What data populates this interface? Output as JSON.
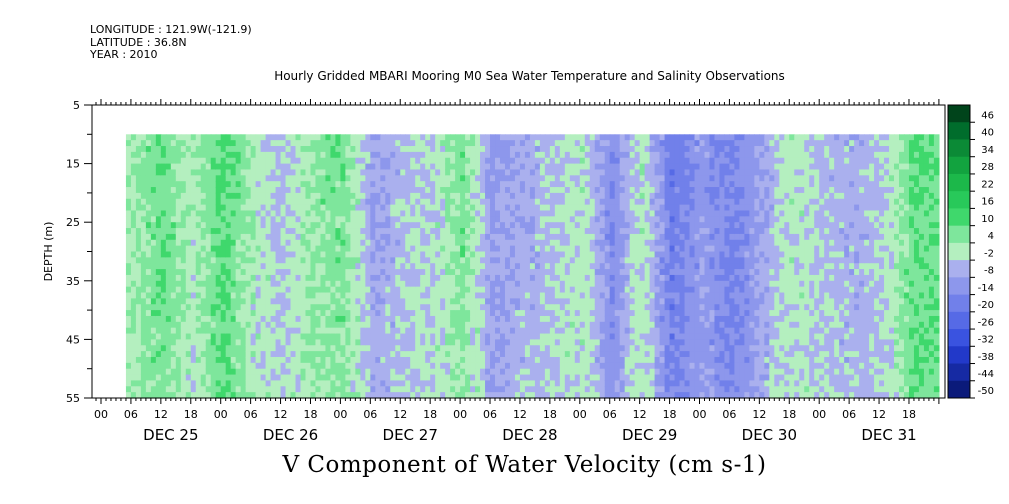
{
  "meta": {
    "longitude": "LONGITUDE : 121.9W(-121.9)",
    "latitude": "LATITUDE : 36.8N",
    "year": "YEAR : 2010"
  },
  "chart_data": {
    "type": "heatmap",
    "title": "Hourly Gridded MBARI Mooring M0 Sea Water Temperature and Salinity Observations",
    "ylabel": "DEPTH (m)",
    "xlabel": "V Component of Water Velocity (cm s-1)",
    "ylim": [
      55,
      5
    ],
    "y_ticks": [
      "5",
      "15",
      "25",
      "35",
      "45",
      "55"
    ],
    "x_hour_ticks": [
      "00",
      "06",
      "12",
      "18",
      "00",
      "06",
      "12",
      "18",
      "00",
      "06",
      "12",
      "18",
      "00",
      "06",
      "12",
      "18",
      "00",
      "06",
      "12",
      "18",
      "00",
      "06",
      "12",
      "18",
      "00",
      "06",
      "12",
      "18"
    ],
    "x_day_labels": [
      "DEC 25",
      "DEC 26",
      "DEC 27",
      "DEC 28",
      "DEC 29",
      "DEC 30",
      "DEC 31"
    ],
    "data_depth_range": [
      10,
      55
    ],
    "data_time_start": "DEC 25 05:00",
    "colorbar": {
      "levels": [
        "46",
        "40",
        "34",
        "28",
        "22",
        "16",
        "10",
        "4",
        "-2",
        "-8",
        "-14",
        "-20",
        "-26",
        "-32",
        "-38",
        "-44",
        "-50"
      ],
      "range": [
        -50,
        52
      ]
    },
    "column_profile": [
      {
        "day": "DEC 25",
        "hour": 6,
        "v": 4
      },
      {
        "day": "DEC 25",
        "hour": 12,
        "v": 10
      },
      {
        "day": "DEC 25",
        "hour": 18,
        "v": 2
      },
      {
        "day": "DEC 26",
        "hour": 0,
        "v": 12
      },
      {
        "day": "DEC 26",
        "hour": 6,
        "v": 3
      },
      {
        "day": "DEC 26",
        "hour": 12,
        "v": -4
      },
      {
        "day": "DEC 26",
        "hour": 18,
        "v": 6
      },
      {
        "day": "DEC 27",
        "hour": 0,
        "v": 8
      },
      {
        "day": "DEC 27",
        "hour": 6,
        "v": -8
      },
      {
        "day": "DEC 27",
        "hour": 12,
        "v": -4
      },
      {
        "day": "DEC 27",
        "hour": 18,
        "v": -2
      },
      {
        "day": "DEC 28",
        "hour": 0,
        "v": 8
      },
      {
        "day": "DEC 28",
        "hour": 6,
        "v": -10
      },
      {
        "day": "DEC 28",
        "hour": 12,
        "v": -6
      },
      {
        "day": "DEC 28",
        "hour": 18,
        "v": -4
      },
      {
        "day": "DEC 29",
        "hour": 0,
        "v": 2
      },
      {
        "day": "DEC 29",
        "hour": 6,
        "v": -14
      },
      {
        "day": "DEC 29",
        "hour": 12,
        "v": 2
      },
      {
        "day": "DEC 29",
        "hour": 18,
        "v": -18
      },
      {
        "day": "DEC 30",
        "hour": 0,
        "v": -10
      },
      {
        "day": "DEC 30",
        "hour": 6,
        "v": -16
      },
      {
        "day": "DEC 30",
        "hour": 12,
        "v": -8
      },
      {
        "day": "DEC 30",
        "hour": 18,
        "v": 2
      },
      {
        "day": "DEC 31",
        "hour": 0,
        "v": -4
      },
      {
        "day": "DEC 31",
        "hour": 6,
        "v": -6
      },
      {
        "day": "DEC 31",
        "hour": 12,
        "v": -4
      },
      {
        "day": "DEC 31",
        "hour": 18,
        "v": 10
      }
    ]
  }
}
